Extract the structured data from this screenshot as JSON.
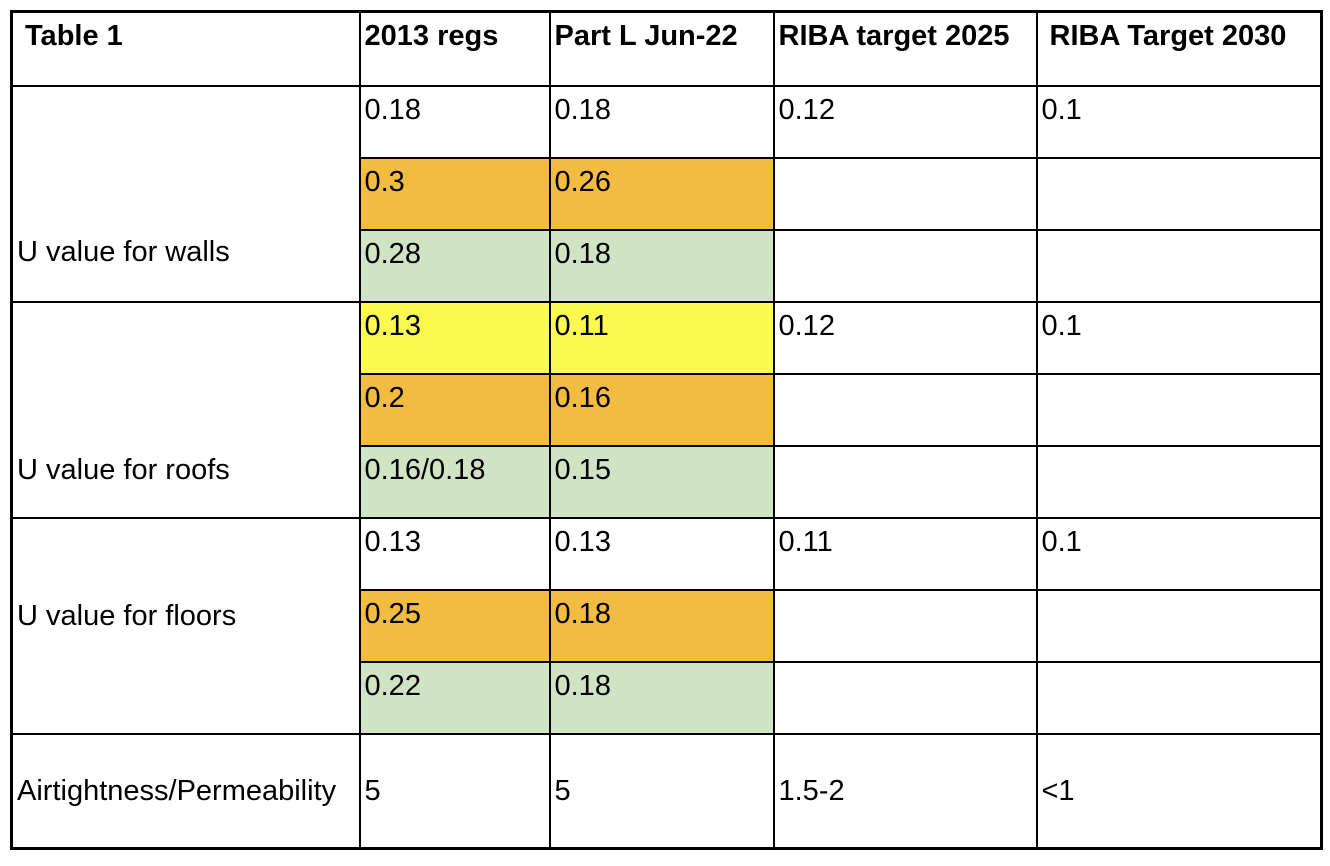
{
  "table": {
    "title_cell": "Table 1",
    "headers": [
      "Table 1",
      "2013 regs",
      "Part L Jun-22",
      "RIBA target 2025",
      "RIBA Target 2030"
    ],
    "colors": {
      "orange": "#F1BC41",
      "yellow": "#FBFA50",
      "green": "#D0E3C5",
      "border": "#000000",
      "background": "#FFFFFF"
    },
    "sections": [
      {
        "label": "U value for walls",
        "rows": [
          {
            "values": [
              "0.18",
              "0.18",
              "0.12",
              "0.1"
            ],
            "highlights": [
              "none",
              "none",
              "none",
              "none"
            ]
          },
          {
            "values": [
              "0.3",
              "0.26",
              "",
              ""
            ],
            "highlights": [
              "orange",
              "orange",
              "none",
              "none"
            ]
          },
          {
            "values": [
              "0.28",
              "0.18",
              "",
              ""
            ],
            "highlights": [
              "green",
              "green",
              "none",
              "none"
            ]
          }
        ]
      },
      {
        "label": "U value for roofs",
        "rows": [
          {
            "values": [
              "0.13",
              "0.11",
              "0.12",
              "0.1"
            ],
            "highlights": [
              "yellow",
              "yellow",
              "none",
              "none"
            ]
          },
          {
            "values": [
              "0.2",
              "0.16",
              "",
              ""
            ],
            "highlights": [
              "orange",
              "orange",
              "none",
              "none"
            ]
          },
          {
            "values": [
              "0.16/0.18",
              "0.15",
              "",
              ""
            ],
            "highlights": [
              "green",
              "green",
              "none",
              "none"
            ]
          }
        ]
      },
      {
        "label": "U value for floors",
        "rows": [
          {
            "values": [
              "0.13",
              "0.13",
              "0.11",
              "0.1"
            ],
            "highlights": [
              "none",
              "none",
              "none",
              "none"
            ]
          },
          {
            "values": [
              "0.25",
              "0.18",
              "",
              ""
            ],
            "highlights": [
              "orange",
              "orange",
              "none",
              "none"
            ]
          },
          {
            "values": [
              "0.22",
              "0.18",
              "",
              ""
            ],
            "highlights": [
              "green",
              "green",
              "none",
              "none"
            ]
          }
        ]
      }
    ],
    "footer_row": {
      "label": "Airtightness/Permeability",
      "values": [
        "5",
        "5",
        "1.5-2",
        "<1"
      ]
    }
  }
}
